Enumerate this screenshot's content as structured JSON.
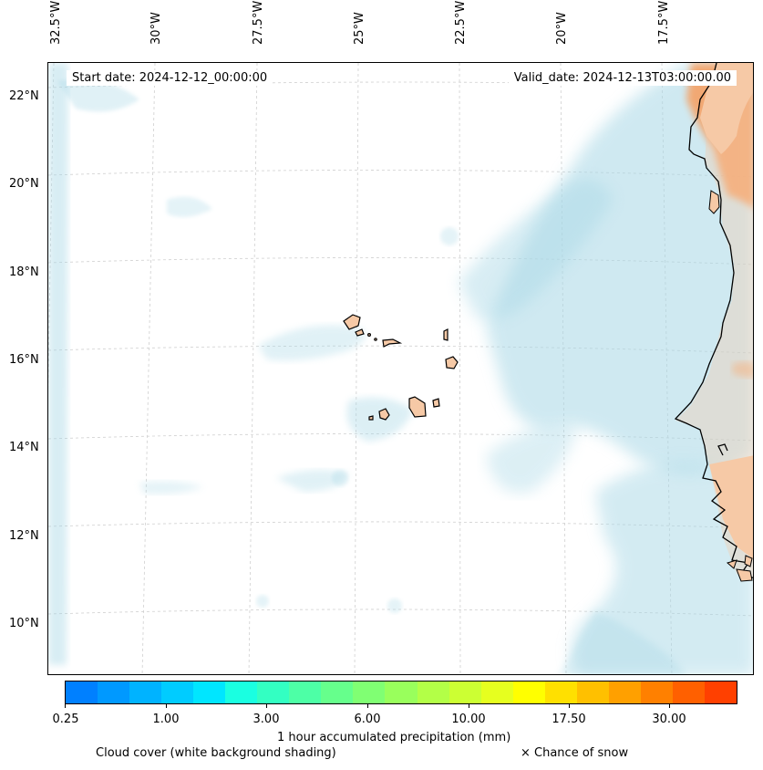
{
  "map": {
    "longitude_labels": [
      "32.5°W",
      "30°W",
      "27.5°W",
      "25°W",
      "22.5°W",
      "20°W",
      "17.5°W"
    ],
    "latitude_labels": [
      "22°N",
      "20°N",
      "18°N",
      "16°N",
      "14°N",
      "12°N",
      "10°N"
    ],
    "start_date": "Start date: 2024-12-12_00:00:00",
    "valid_date": "Valid_date: 2024-12-13T03:00:00.00",
    "land_color": "#f6c9a6",
    "cloud_color": "#a9d8e6",
    "precip_color": "#f5a266"
  },
  "colorbar": {
    "colors": [
      "#0080ff",
      "#0099ff",
      "#00b3ff",
      "#00ccff",
      "#00e6ff",
      "#1affe1",
      "#33ffc2",
      "#4dffa6",
      "#66ff8c",
      "#80ff73",
      "#99ff5c",
      "#b3ff47",
      "#ccff33",
      "#e6ff1f",
      "#ffff00",
      "#ffe000",
      "#ffc000",
      "#ffa000",
      "#ff8000",
      "#ff6000",
      "#ff4000"
    ],
    "tick_labels": [
      "0.25",
      "1.00",
      "3.00",
      "6.00",
      "10.00",
      "17.50",
      "30.00"
    ],
    "label": "1 hour accumulated precipitation (mm)"
  },
  "legend": {
    "cloud_cover": "Cloud cover (white background shading)",
    "snow": "× Chance of snow"
  }
}
